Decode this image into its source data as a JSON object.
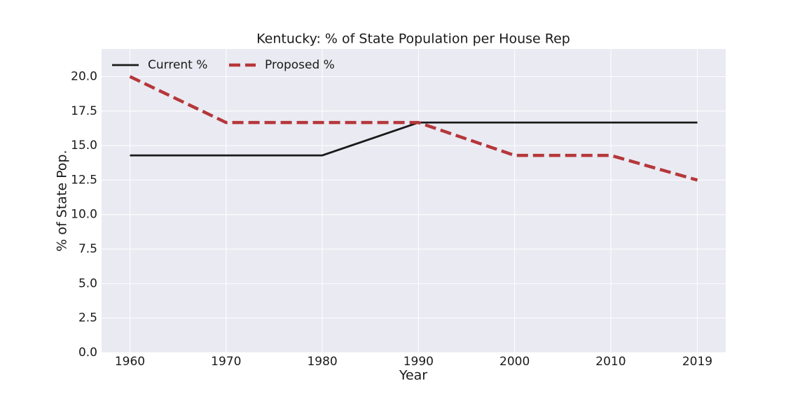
{
  "chart_data": {
    "type": "line",
    "title": "Kentucky: % of State Population per House Rep",
    "x_label": "Year",
    "y_label": "% of State Pop.",
    "x": [
      1960,
      1970,
      1980,
      1990,
      2000,
      2010,
      2019
    ],
    "series": [
      {
        "name": "Current %",
        "color": "#1a1a1a",
        "dash": "solid",
        "values": [
          14.29,
          14.29,
          14.29,
          16.67,
          16.67,
          16.67,
          16.67
        ]
      },
      {
        "name": "Proposed %",
        "color": "#b5373a",
        "dash": "dashed",
        "values": [
          20,
          16.67,
          16.67,
          16.67,
          14.29,
          14.29,
          12.5
        ]
      }
    ],
    "xlim": [
      1957.05,
      2021.95
    ],
    "xticks": [
      1960,
      1970,
      1980,
      1990,
      2000,
      2010,
      2019
    ],
    "ylim": [
      0,
      22
    ],
    "yticks": [
      {
        "value": 0,
        "label": "0.0"
      },
      {
        "value": 2.5,
        "label": "2.5"
      },
      {
        "value": 5,
        "label": "5.0"
      },
      {
        "value": 7.5,
        "label": "7.5"
      },
      {
        "value": 10,
        "label": "10.0"
      },
      {
        "value": 12.5,
        "label": "12.5"
      },
      {
        "value": 15,
        "label": "15.0"
      },
      {
        "value": 17.5,
        "label": "17.5"
      },
      {
        "value": 20,
        "label": "20.0"
      }
    ],
    "grid": true,
    "legend": "upper left"
  }
}
